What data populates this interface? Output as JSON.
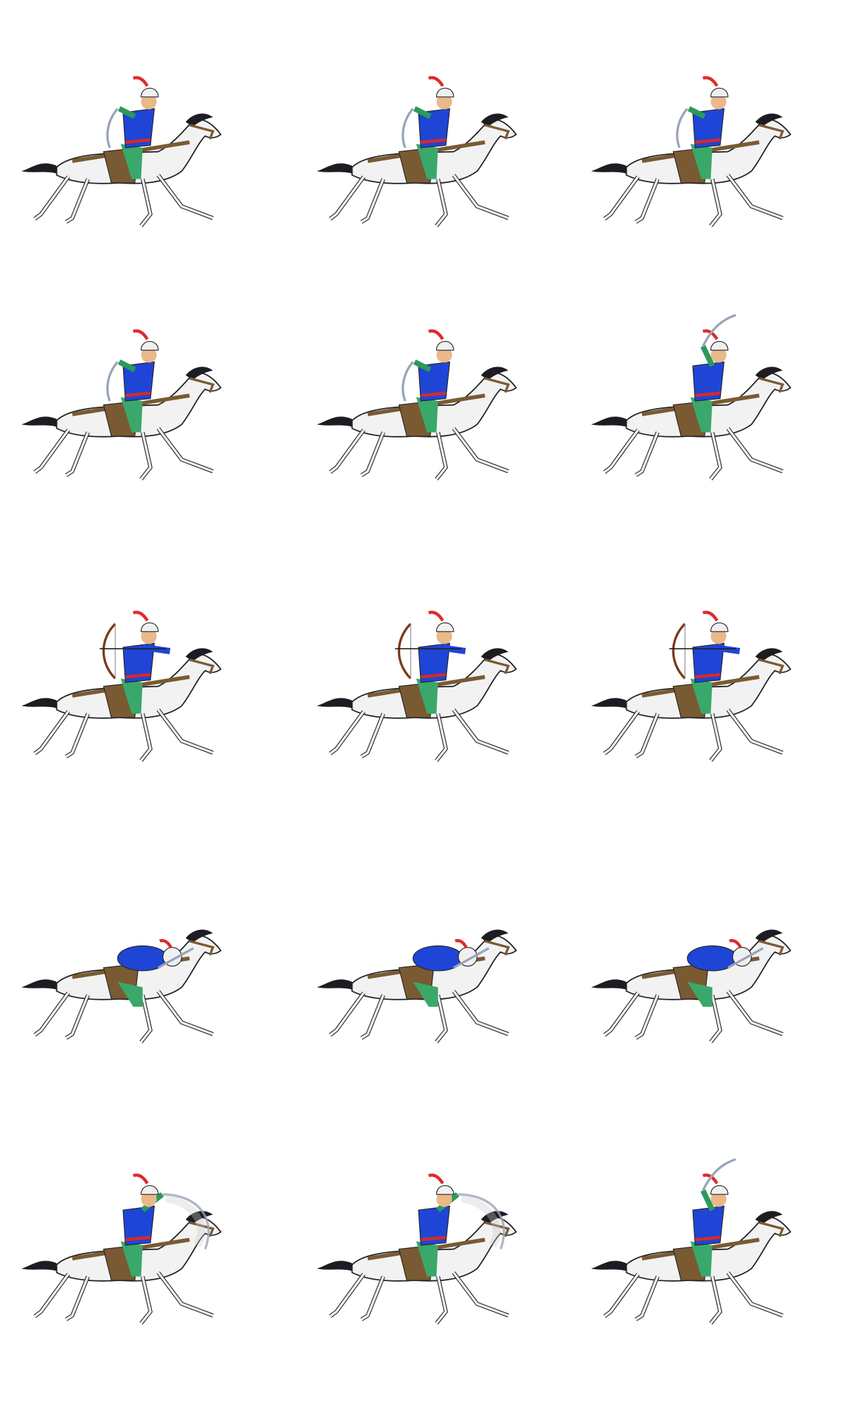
{
  "sheet": {
    "background": "#ffffff",
    "rows": [
      [
        "sword-gallop",
        "sword-gallop",
        "sword-gallop"
      ],
      [
        "sword-rear",
        "sword-crouch",
        "sword-raised-leap"
      ],
      [
        "bow-draw",
        "bow-draw",
        "bow-draw"
      ],
      [
        "lean-forward",
        "lean-forward",
        "lean-forward"
      ],
      [
        "sword-slash",
        "sword-slash",
        "sword-overhead"
      ]
    ]
  },
  "colors": {
    "horse": "#f2f2f2",
    "outline": "#222222",
    "mane": "#1c1c22",
    "saddle": "#7a5a32",
    "tunic": "#1f45d6",
    "sleeve": "#2a9a5a",
    "trousers": "#3aa86a",
    "sash": "#d62a2a",
    "turban": "#f0f0f0",
    "plume": "#e02a2a",
    "blade": "#9aa4b8",
    "bow": "#7a3a1a"
  }
}
